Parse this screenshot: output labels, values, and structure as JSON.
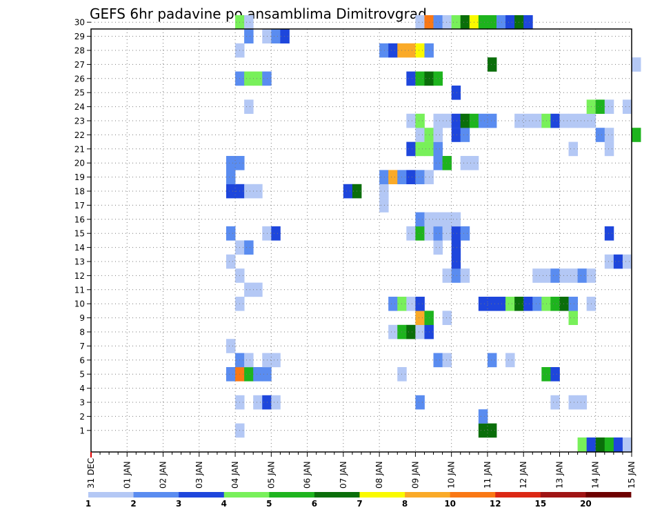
{
  "chart_data": {
    "type": "heatmap",
    "title": "GEFS 6hr padavine po ansamblima Dimitrovgrad",
    "xlabel": "",
    "ylabel": "",
    "x_ticks": [
      "31 DEC",
      "01 JAN",
      "02 JAN",
      "03 JAN",
      "04 JAN",
      "05 JAN",
      "06 JAN",
      "07 JAN",
      "08 JAN",
      "09 JAN",
      "10 JAN",
      "11 JAN",
      "12 JAN",
      "13 JAN",
      "14 JAN",
      "15 JAN"
    ],
    "y_ticks": [
      "1",
      "2",
      "3",
      "4",
      "5",
      "6",
      "7",
      "8",
      "9",
      "10",
      "11",
      "12",
      "13",
      "14",
      "15",
      "16",
      "17",
      "18",
      "19",
      "20",
      "21",
      "22",
      "23",
      "24",
      "25",
      "26",
      "27",
      "28",
      "29",
      "30"
    ],
    "xlim_steps": [
      0,
      60
    ],
    "ylim": [
      0,
      30
    ],
    "grid": true,
    "colorbar": {
      "labels": [
        "1",
        "2",
        "3",
        "4",
        "5",
        "6",
        "7",
        "8",
        "10",
        "12",
        "15",
        "20"
      ],
      "colors": [
        "#b4c8f5",
        "#5a8cf0",
        "#1e46dc",
        "#78f05a",
        "#1eb41e",
        "#0a6e0a",
        "#fafa00",
        "#faaa28",
        "#fa7814",
        "#dc2814",
        "#a01414",
        "#6e0000"
      ]
    },
    "cells": [
      [
        1,
        16,
        0
      ],
      [
        1,
        43,
        5
      ],
      [
        1,
        44,
        5
      ],
      [
        2,
        43,
        1
      ],
      [
        3,
        16,
        0
      ],
      [
        3,
        18,
        0
      ],
      [
        3,
        19,
        2
      ],
      [
        3,
        20,
        0
      ],
      [
        3,
        36,
        1
      ],
      [
        3,
        51,
        0
      ],
      [
        3,
        53,
        0
      ],
      [
        3,
        54,
        0
      ],
      [
        5,
        15,
        1
      ],
      [
        5,
        16,
        8
      ],
      [
        5,
        17,
        4
      ],
      [
        5,
        18,
        1
      ],
      [
        5,
        19,
        1
      ],
      [
        5,
        34,
        0
      ],
      [
        5,
        50,
        4
      ],
      [
        5,
        51,
        2
      ],
      [
        6,
        16,
        1
      ],
      [
        6,
        17,
        0
      ],
      [
        6,
        19,
        0
      ],
      [
        6,
        20,
        0
      ],
      [
        6,
        38,
        1
      ],
      [
        6,
        39,
        0
      ],
      [
        6,
        44,
        1
      ],
      [
        6,
        46,
        0
      ],
      [
        7,
        15,
        0
      ],
      [
        8,
        33,
        0
      ],
      [
        8,
        34,
        4
      ],
      [
        8,
        35,
        5
      ],
      [
        8,
        36,
        0
      ],
      [
        8,
        37,
        2
      ],
      [
        9,
        36,
        7
      ],
      [
        9,
        37,
        4
      ],
      [
        9,
        39,
        0
      ],
      [
        9,
        53,
        3
      ],
      [
        10,
        16,
        0
      ],
      [
        10,
        33,
        1
      ],
      [
        10,
        34,
        3
      ],
      [
        10,
        35,
        0
      ],
      [
        10,
        36,
        2
      ],
      [
        10,
        43,
        2
      ],
      [
        10,
        44,
        2
      ],
      [
        10,
        45,
        2
      ],
      [
        10,
        46,
        3
      ],
      [
        10,
        47,
        5
      ],
      [
        10,
        48,
        2
      ],
      [
        10,
        49,
        1
      ],
      [
        10,
        50,
        3
      ],
      [
        10,
        51,
        4
      ],
      [
        10,
        52,
        5
      ],
      [
        10,
        53,
        1
      ],
      [
        10,
        55,
        0
      ],
      [
        11,
        17,
        0
      ],
      [
        11,
        18,
        0
      ],
      [
        12,
        16,
        0
      ],
      [
        12,
        39,
        0
      ],
      [
        12,
        40,
        1
      ],
      [
        12,
        41,
        0
      ],
      [
        12,
        49,
        0
      ],
      [
        12,
        50,
        0
      ],
      [
        12,
        51,
        1
      ],
      [
        12,
        52,
        0
      ],
      [
        12,
        53,
        0
      ],
      [
        12,
        54,
        1
      ],
      [
        12,
        55,
        0
      ],
      [
        13,
        15,
        0
      ],
      [
        13,
        40,
        2
      ],
      [
        13,
        57,
        0
      ],
      [
        13,
        58,
        2
      ],
      [
        13,
        59,
        0
      ],
      [
        14,
        16,
        0
      ],
      [
        14,
        17,
        1
      ],
      [
        14,
        38,
        0
      ],
      [
        14,
        40,
        2
      ],
      [
        15,
        15,
        1
      ],
      [
        15,
        19,
        0
      ],
      [
        15,
        20,
        2
      ],
      [
        15,
        35,
        0
      ],
      [
        15,
        36,
        4
      ],
      [
        15,
        37,
        0
      ],
      [
        15,
        38,
        1
      ],
      [
        15,
        39,
        0
      ],
      [
        15,
        40,
        2
      ],
      [
        15,
        41,
        1
      ],
      [
        15,
        57,
        2
      ],
      [
        16,
        36,
        1
      ],
      [
        16,
        37,
        0
      ],
      [
        16,
        38,
        0
      ],
      [
        16,
        39,
        0
      ],
      [
        16,
        40,
        0
      ],
      [
        17,
        32,
        0
      ],
      [
        18,
        15,
        2
      ],
      [
        18,
        16,
        2
      ],
      [
        18,
        17,
        0
      ],
      [
        18,
        18,
        0
      ],
      [
        18,
        28,
        2
      ],
      [
        18,
        29,
        5
      ],
      [
        18,
        32,
        0
      ],
      [
        19,
        15,
        1
      ],
      [
        19,
        32,
        1
      ],
      [
        19,
        33,
        7
      ],
      [
        19,
        34,
        1
      ],
      [
        19,
        35,
        2
      ],
      [
        19,
        36,
        1
      ],
      [
        19,
        37,
        0
      ],
      [
        20,
        15,
        1
      ],
      [
        20,
        16,
        1
      ],
      [
        20,
        38,
        1
      ],
      [
        20,
        39,
        4
      ],
      [
        20,
        41,
        0
      ],
      [
        20,
        42,
        0
      ],
      [
        21,
        35,
        2
      ],
      [
        21,
        36,
        3
      ],
      [
        21,
        37,
        3
      ],
      [
        21,
        38,
        1
      ],
      [
        21,
        53,
        0
      ],
      [
        21,
        57,
        0
      ],
      [
        22,
        36,
        0
      ],
      [
        22,
        37,
        3
      ],
      [
        22,
        38,
        0
      ],
      [
        22,
        40,
        2
      ],
      [
        22,
        41,
        1
      ],
      [
        22,
        56,
        1
      ],
      [
        22,
        57,
        0
      ],
      [
        22,
        60,
        4
      ],
      [
        23,
        35,
        0
      ],
      [
        23,
        36,
        3
      ],
      [
        23,
        38,
        0
      ],
      [
        23,
        39,
        0
      ],
      [
        23,
        40,
        2
      ],
      [
        23,
        41,
        5
      ],
      [
        23,
        42,
        4
      ],
      [
        23,
        43,
        1
      ],
      [
        23,
        44,
        1
      ],
      [
        23,
        47,
        0
      ],
      [
        23,
        48,
        0
      ],
      [
        23,
        49,
        0
      ],
      [
        23,
        50,
        3
      ],
      [
        23,
        51,
        2
      ],
      [
        23,
        52,
        0
      ],
      [
        23,
        53,
        0
      ],
      [
        23,
        54,
        0
      ],
      [
        23,
        55,
        0
      ],
      [
        24,
        17,
        0
      ],
      [
        24,
        55,
        3
      ],
      [
        24,
        56,
        4
      ],
      [
        24,
        57,
        0
      ],
      [
        24,
        59,
        0
      ],
      [
        25,
        40,
        2
      ],
      [
        26,
        16,
        1
      ],
      [
        26,
        17,
        3
      ],
      [
        26,
        18,
        3
      ],
      [
        26,
        19,
        1
      ],
      [
        26,
        35,
        2
      ],
      [
        26,
        36,
        4
      ],
      [
        26,
        37,
        5
      ],
      [
        26,
        38,
        4
      ],
      [
        27,
        44,
        5
      ],
      [
        27,
        60,
        0
      ],
      [
        28,
        16,
        0
      ],
      [
        28,
        32,
        1
      ],
      [
        28,
        33,
        2
      ],
      [
        28,
        34,
        7
      ],
      [
        28,
        35,
        7
      ],
      [
        28,
        36,
        6
      ],
      [
        28,
        37,
        1
      ],
      [
        29,
        17,
        1
      ],
      [
        29,
        19,
        0
      ],
      [
        29,
        20,
        1
      ],
      [
        29,
        21,
        2
      ],
      [
        30,
        16,
        3
      ],
      [
        30,
        17,
        0
      ],
      [
        30,
        36,
        0
      ],
      [
        30,
        37,
        8
      ],
      [
        30,
        38,
        1
      ],
      [
        30,
        39,
        0
      ],
      [
        30,
        40,
        3
      ],
      [
        30,
        41,
        5
      ],
      [
        30,
        42,
        6
      ],
      [
        30,
        43,
        4
      ],
      [
        30,
        44,
        4
      ],
      [
        30,
        45,
        1
      ],
      [
        30,
        46,
        2
      ],
      [
        30,
        47,
        5
      ],
      [
        30,
        48,
        2
      ],
      [
        0,
        54,
        3
      ],
      [
        0,
        55,
        2
      ],
      [
        0,
        56,
        5
      ],
      [
        0,
        57,
        4
      ],
      [
        0,
        58,
        2
      ],
      [
        0,
        59,
        0
      ]
    ]
  }
}
